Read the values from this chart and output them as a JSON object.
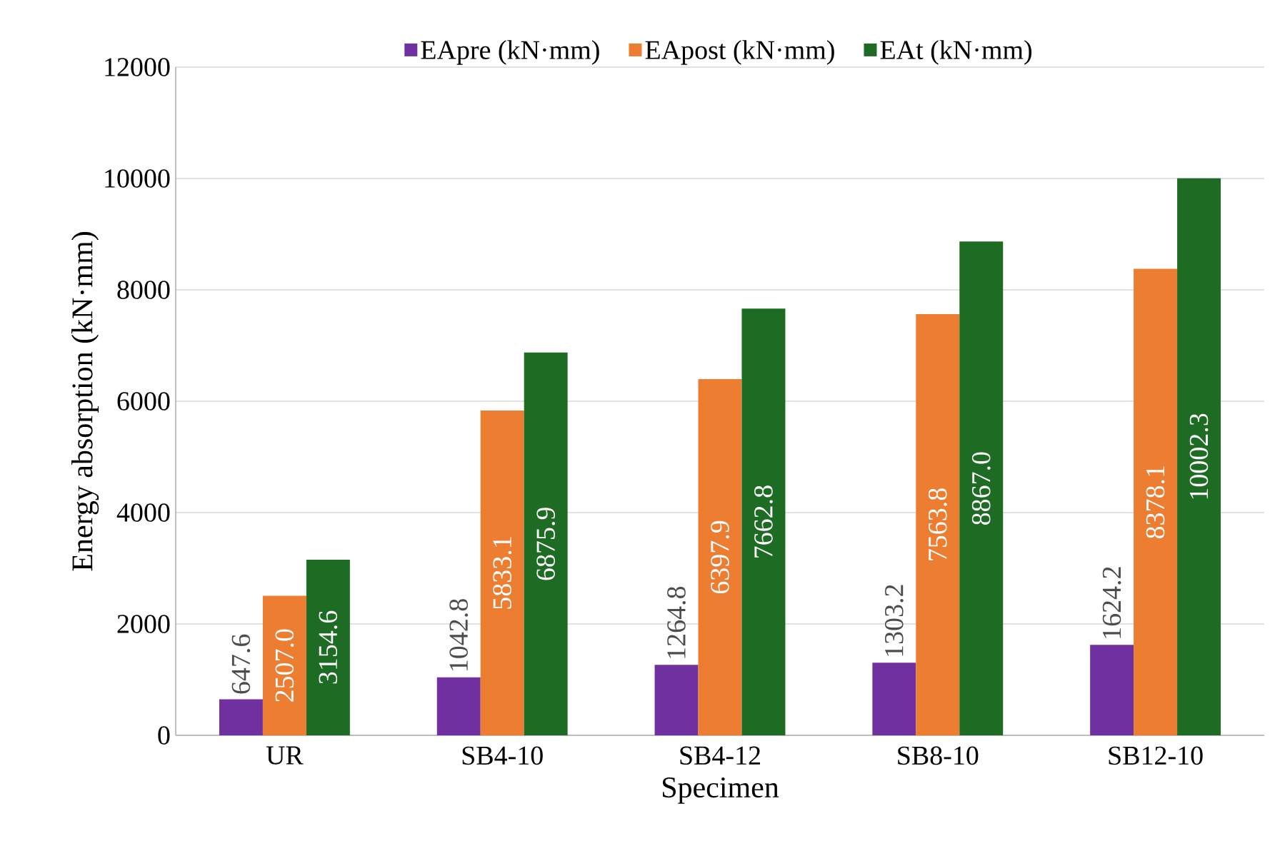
{
  "chart_data": {
    "type": "bar",
    "xlabel": "Specimen",
    "ylabel": "Energy absorption (kN·mm)",
    "categories": [
      "UR",
      "SB4-10",
      "SB4-12",
      "SB8-10",
      "SB12-10"
    ],
    "series": [
      {
        "name": "EApre (kN·mm)",
        "color": "#7030a0",
        "values": [
          647.6,
          1042.8,
          1264.8,
          1303.2,
          1624.2
        ],
        "value_labels": [
          "647.6",
          "1042.8",
          "1264.8",
          "1303.2",
          "1624.2"
        ]
      },
      {
        "name": "EApost (kN·mm)",
        "color": "#ed7d31",
        "values": [
          2507.0,
          5833.1,
          6397.9,
          7563.8,
          8378.1
        ],
        "value_labels": [
          "2507.0",
          "5833.1",
          "6397.9",
          "7563.8",
          "8378.1"
        ]
      },
      {
        "name": "EAt (kN·mm)",
        "color": "#1e6b24",
        "values": [
          3154.6,
          6875.9,
          7662.8,
          8867.0,
          10002.3
        ],
        "value_labels": [
          "3154.6",
          "6875.9",
          "7662.8",
          "8867.0",
          "10002.3"
        ]
      }
    ],
    "ylim": [
      0,
      12000
    ],
    "yticks": [
      0,
      2000,
      4000,
      6000,
      8000,
      10000,
      12000
    ],
    "grid": "y",
    "legend": "top"
  }
}
